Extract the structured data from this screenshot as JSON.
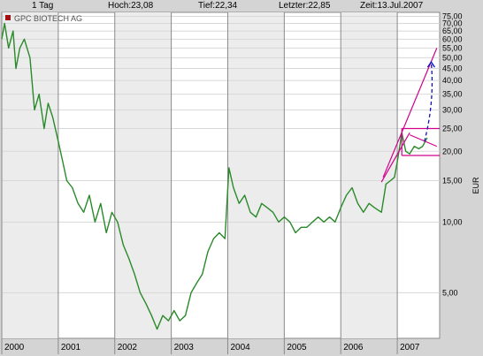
{
  "header": {
    "period": "1 Tag",
    "high": "Hoch:23,08",
    "low": "Tief:22,34",
    "last": "Letzter:22,85",
    "time": "Zeit:13.Jul.2007"
  },
  "chart_data": {
    "type": "line",
    "title": "GPC BIOTECH AG",
    "ylabel": "EUR",
    "yscale": "log",
    "ylim": [
      3.2,
      78
    ],
    "xlim": [
      2000.0,
      2007.75
    ],
    "y_ticks": [
      {
        "v": 75,
        "label": "75,00"
      },
      {
        "v": 70,
        "label": "70,00"
      },
      {
        "v": 65,
        "label": "65,00"
      },
      {
        "v": 60,
        "label": "60,00"
      },
      {
        "v": 55,
        "label": "55,00"
      },
      {
        "v": 50,
        "label": "50,00"
      },
      {
        "v": 45,
        "label": "45,00"
      },
      {
        "v": 40,
        "label": "40,00"
      },
      {
        "v": 35,
        "label": "35,00"
      },
      {
        "v": 30,
        "label": "30,00"
      },
      {
        "v": 25,
        "label": "25,00"
      },
      {
        "v": 20,
        "label": "20,00"
      },
      {
        "v": 15,
        "label": "15,00"
      },
      {
        "v": 10,
        "label": "10,00"
      },
      {
        "v": 5,
        "label": "5,00"
      }
    ],
    "x_labels": [
      "2000",
      "2001",
      "2002",
      "2003",
      "2004",
      "2005",
      "2006",
      "2007"
    ],
    "series": [
      {
        "color": "#2a8a2a",
        "x": [
          2000.0,
          2000.05,
          2000.12,
          2000.2,
          2000.25,
          2000.32,
          2000.4,
          2000.5,
          2000.58,
          2000.66,
          2000.75,
          2000.82,
          2000.9,
          2001.0,
          2001.08,
          2001.15,
          2001.25,
          2001.35,
          2001.45,
          2001.55,
          2001.65,
          2001.75,
          2001.85,
          2001.95,
          2002.05,
          2002.15,
          2002.25,
          2002.35,
          2002.45,
          2002.55,
          2002.65,
          2002.75,
          2002.85,
          2002.95,
          2003.05,
          2003.15,
          2003.25,
          2003.35,
          2003.45,
          2003.55,
          2003.65,
          2003.75,
          2003.85,
          2003.95,
          2004.02,
          2004.1,
          2004.2,
          2004.3,
          2004.4,
          2004.5,
          2004.6,
          2004.7,
          2004.8,
          2004.9,
          2005.0,
          2005.1,
          2005.2,
          2005.3,
          2005.4,
          2005.5,
          2005.6,
          2005.7,
          2005.8,
          2005.9,
          2006.0,
          2006.1,
          2006.2,
          2006.3,
          2006.4,
          2006.5,
          2006.6,
          2006.72,
          2006.8,
          2006.88,
          2006.95,
          2007.0,
          2007.08,
          2007.15,
          2007.22,
          2007.3,
          2007.38,
          2007.45,
          2007.53
        ],
        "y": [
          60,
          70,
          55,
          65,
          45,
          55,
          60,
          50,
          30,
          35,
          25,
          32,
          28,
          22,
          18,
          15,
          14,
          12,
          11,
          13,
          10,
          12,
          9,
          11,
          10,
          8,
          7,
          6,
          5,
          4.5,
          4,
          3.5,
          4,
          3.8,
          4.2,
          3.8,
          4,
          5,
          5.5,
          6,
          7.5,
          8.5,
          9,
          8.5,
          17,
          14,
          12,
          13,
          11,
          10.5,
          12,
          11.5,
          11,
          10,
          10.5,
          10,
          9,
          9.5,
          9.5,
          10,
          10.5,
          10,
          10.5,
          10,
          11.5,
          13,
          14,
          12,
          11,
          12,
          11.5,
          11,
          14.5,
          15,
          15.5,
          18,
          24,
          20,
          19.5,
          21,
          20.5,
          21,
          22.85
        ]
      }
    ],
    "annotations": {
      "channel_color": "#d0008c",
      "forecast_color": "#1010c0",
      "upper_trend": [
        [
          2006.75,
          15.5
        ],
        [
          2007.7,
          55
        ]
      ],
      "lower_trend": [
        [
          2006.72,
          14.8
        ],
        [
          2007.22,
          24
        ]
      ],
      "box_top": 25,
      "box_bottom": 19.2,
      "box_x": [
        2007.08,
        2007.75
      ],
      "triangle_upper": [
        [
          2007.22,
          23.5
        ],
        [
          2007.7,
          21
        ]
      ],
      "forecast_arrow": [
        [
          2007.48,
          22
        ],
        [
          2007.6,
          48
        ]
      ]
    }
  }
}
